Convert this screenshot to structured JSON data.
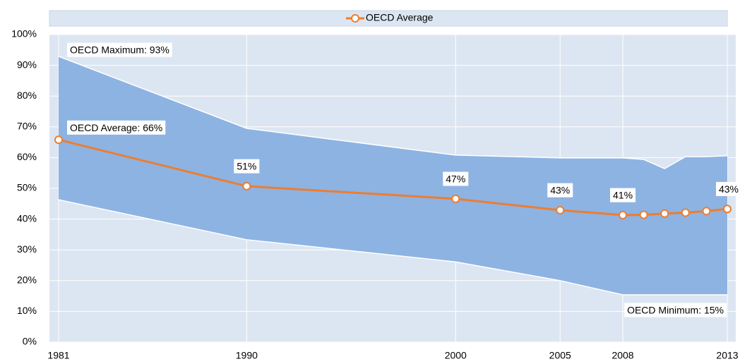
{
  "chart_data": {
    "type": "line",
    "x": [
      1981,
      1990,
      2000,
      2005,
      2008,
      2009,
      2010,
      2011,
      2012,
      2013
    ],
    "xlim": [
      1981,
      2013
    ],
    "xticks": [
      1981,
      1990,
      2000,
      2005,
      2008,
      2013
    ],
    "ylim": [
      0,
      100
    ],
    "yticks": [
      {
        "value": 0,
        "label": "0%"
      },
      {
        "value": 10,
        "label": "10%"
      },
      {
        "value": 20,
        "label": "20%"
      },
      {
        "value": 30,
        "label": "30%"
      },
      {
        "value": 40,
        "label": "40%"
      },
      {
        "value": 50,
        "label": "50%"
      },
      {
        "value": 60,
        "label": "60%"
      },
      {
        "value": 70,
        "label": "70%"
      },
      {
        "value": 80,
        "label": "80%"
      },
      {
        "value": 90,
        "label": "90%"
      },
      {
        "value": 100,
        "label": "100%"
      }
    ],
    "grid": true,
    "legend": "top",
    "range": {
      "color": "#8db3e2",
      "upper": [
        92.9,
        69.5,
        60.8,
        59.9,
        59.9,
        59.4,
        56.4,
        60.3,
        60.3,
        60.6
      ],
      "lower": [
        46.3,
        33.3,
        26.1,
        20.0,
        15.4,
        15.4,
        15.4,
        15.4,
        15.4,
        15.4
      ],
      "upper_label": "OECD Maximum: 93%",
      "lower_label": "OECD Minimum: 15%"
    },
    "series": [
      {
        "name": "OECD Average",
        "color": "#ed7d31",
        "values": [
          65.8,
          50.7,
          46.6,
          42.9,
          41.3,
          41.4,
          41.8,
          42.1,
          42.6,
          43.3
        ],
        "value_labels": [
          "OECD Average: 66%",
          "51%",
          "47%",
          "43%",
          "41%",
          null,
          null,
          null,
          null,
          "43%"
        ]
      }
    ]
  }
}
